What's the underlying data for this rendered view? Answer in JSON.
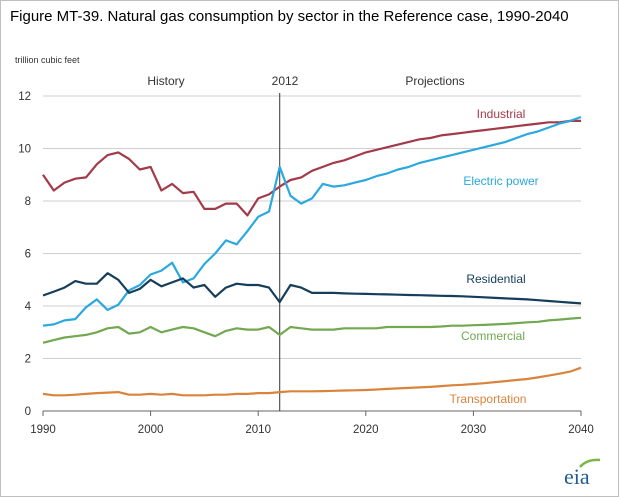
{
  "figure": {
    "title": "Figure MT-39. Natural gas consumption by sector in the Reference case, 1990-2040",
    "unit_label": "trillion cubic feet",
    "period_history": "History",
    "period_divider": "2012",
    "period_projections": "Projections",
    "logo_text": "eia"
  },
  "chart_data": {
    "type": "line",
    "title": "Figure MT-39. Natural gas consumption by sector in the Reference case, 1990-2040",
    "ylabel": "trillion cubic feet",
    "xlabel": "",
    "xlim": [
      1990,
      2040
    ],
    "ylim": [
      0,
      12
    ],
    "xticks": [
      1990,
      2000,
      2010,
      2020,
      2030,
      2040
    ],
    "yticks": [
      0,
      2,
      4,
      6,
      8,
      10,
      12
    ],
    "grid": "horizontal",
    "divider_year": 2012,
    "x": [
      1990,
      1991,
      1992,
      1993,
      1994,
      1995,
      1996,
      1997,
      1998,
      1999,
      2000,
      2001,
      2002,
      2003,
      2004,
      2005,
      2006,
      2007,
      2008,
      2009,
      2010,
      2011,
      2012,
      2013,
      2014,
      2015,
      2016,
      2017,
      2018,
      2019,
      2020,
      2021,
      2022,
      2023,
      2024,
      2025,
      2026,
      2027,
      2028,
      2029,
      2030,
      2031,
      2032,
      2033,
      2034,
      2035,
      2036,
      2037,
      2038,
      2039,
      2040
    ],
    "series": [
      {
        "name": "Industrial",
        "color": "#a33a4a",
        "values": [
          9.0,
          8.4,
          8.7,
          8.85,
          8.9,
          9.4,
          9.75,
          9.85,
          9.6,
          9.2,
          9.3,
          8.4,
          8.65,
          8.3,
          8.35,
          7.7,
          7.7,
          7.9,
          7.9,
          7.45,
          8.1,
          8.25,
          8.55,
          8.8,
          8.9,
          9.15,
          9.3,
          9.45,
          9.55,
          9.7,
          9.85,
          9.95,
          10.05,
          10.15,
          10.25,
          10.35,
          10.4,
          10.5,
          10.55,
          10.6,
          10.65,
          10.7,
          10.75,
          10.8,
          10.85,
          10.9,
          10.95,
          11.0,
          11.0,
          11.05,
          11.05
        ]
      },
      {
        "name": "Electric power",
        "color": "#2aa8df",
        "values": [
          3.25,
          3.3,
          3.45,
          3.5,
          3.95,
          4.25,
          3.85,
          4.05,
          4.6,
          4.8,
          5.2,
          5.35,
          5.65,
          4.9,
          5.05,
          5.6,
          6.0,
          6.5,
          6.35,
          6.85,
          7.4,
          7.6,
          9.3,
          8.2,
          7.9,
          8.1,
          8.65,
          8.55,
          8.6,
          8.7,
          8.8,
          8.95,
          9.05,
          9.2,
          9.3,
          9.45,
          9.55,
          9.65,
          9.75,
          9.85,
          9.95,
          10.05,
          10.15,
          10.25,
          10.4,
          10.55,
          10.65,
          10.8,
          10.95,
          11.05,
          11.2
        ]
      },
      {
        "name": "Residential",
        "color": "#163d5a",
        "values": [
          4.4,
          4.55,
          4.7,
          4.95,
          4.85,
          4.85,
          5.25,
          5.0,
          4.5,
          4.65,
          5.0,
          4.75,
          4.9,
          5.05,
          4.7,
          4.8,
          4.35,
          4.7,
          4.85,
          4.8,
          4.8,
          4.7,
          4.15,
          4.8,
          4.7,
          4.5,
          4.5,
          4.5,
          4.48,
          4.47,
          4.46,
          4.45,
          4.44,
          4.43,
          4.42,
          4.41,
          4.4,
          4.39,
          4.38,
          4.37,
          4.35,
          4.33,
          4.31,
          4.29,
          4.27,
          4.25,
          4.22,
          4.19,
          4.16,
          4.13,
          4.1
        ]
      },
      {
        "name": "Commercial",
        "color": "#71a850",
        "values": [
          2.6,
          2.7,
          2.8,
          2.85,
          2.9,
          3.0,
          3.15,
          3.2,
          2.95,
          3.0,
          3.2,
          3.0,
          3.1,
          3.2,
          3.15,
          3.0,
          2.85,
          3.05,
          3.15,
          3.1,
          3.1,
          3.2,
          2.9,
          3.2,
          3.15,
          3.1,
          3.1,
          3.1,
          3.15,
          3.15,
          3.15,
          3.15,
          3.2,
          3.2,
          3.2,
          3.2,
          3.2,
          3.22,
          3.25,
          3.25,
          3.27,
          3.28,
          3.3,
          3.32,
          3.35,
          3.38,
          3.4,
          3.45,
          3.48,
          3.52,
          3.55
        ]
      },
      {
        "name": "Transportation",
        "color": "#d9833c",
        "values": [
          0.65,
          0.6,
          0.6,
          0.62,
          0.65,
          0.68,
          0.7,
          0.72,
          0.62,
          0.62,
          0.65,
          0.62,
          0.65,
          0.6,
          0.6,
          0.6,
          0.62,
          0.62,
          0.65,
          0.65,
          0.68,
          0.68,
          0.72,
          0.75,
          0.75,
          0.75,
          0.76,
          0.77,
          0.78,
          0.79,
          0.8,
          0.82,
          0.84,
          0.86,
          0.88,
          0.9,
          0.92,
          0.95,
          0.98,
          1.0,
          1.03,
          1.06,
          1.1,
          1.14,
          1.18,
          1.22,
          1.28,
          1.35,
          1.42,
          1.5,
          1.65
        ]
      }
    ]
  }
}
